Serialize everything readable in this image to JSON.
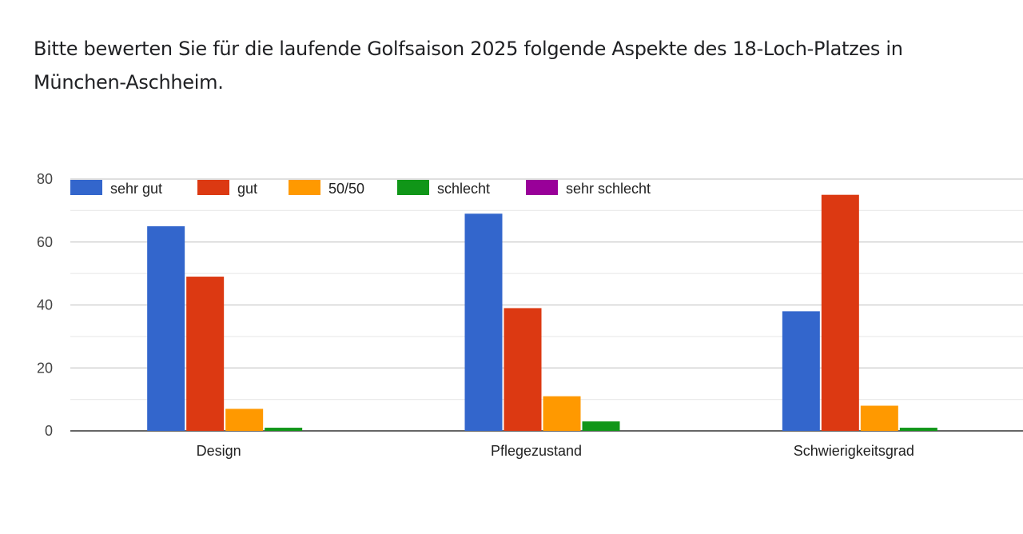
{
  "question": {
    "title": "Bitte bewerten Sie für die laufende Golfsaison 2025 folgende Aspekte des 18-Loch-Platzes in München-Aschheim."
  },
  "chart_data": {
    "type": "bar",
    "title": "Bitte bewerten Sie für die laufende Golfsaison 2025 folgende Aspekte des 18-Loch-Platzes in München-Aschheim.",
    "xlabel": "",
    "ylabel": "",
    "categories": [
      "Design",
      "Pflegezustand",
      "Schwierigkeitsgrad"
    ],
    "series": [
      {
        "name": "sehr gut",
        "color": "#3366cc",
        "values": [
          65,
          69,
          38
        ]
      },
      {
        "name": "gut",
        "color": "#dc3912",
        "values": [
          49,
          39,
          75
        ]
      },
      {
        "name": "50/50",
        "color": "#ff9900",
        "values": [
          7,
          11,
          8
        ]
      },
      {
        "name": "schlecht",
        "color": "#109618",
        "values": [
          1,
          3,
          1
        ]
      },
      {
        "name": "sehr schlecht",
        "color": "#990099",
        "values": [
          0,
          0,
          0
        ]
      }
    ],
    "ylim": [
      0,
      80
    ],
    "yticks": [
      0,
      20,
      40,
      60,
      80
    ],
    "grid": true,
    "legend_position": "top"
  }
}
